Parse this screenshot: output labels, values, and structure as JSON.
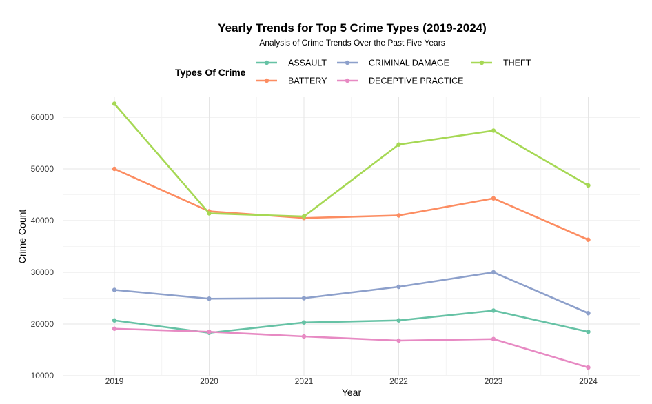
{
  "chart_data": {
    "type": "line",
    "title": "Yearly Trends for Top 5 Crime Types (2019-2024)",
    "subtitle": "Analysis of Crime Trends Over the Past Five Years",
    "xlabel": "Year",
    "ylabel": "Crime Count",
    "x": [
      "2019",
      "2020",
      "2021",
      "2022",
      "2023",
      "2024"
    ],
    "yticks": [
      "10000",
      "20000",
      "30000",
      "40000",
      "50000",
      "60000"
    ],
    "ylim": [
      10000,
      64000
    ],
    "grid": true,
    "legend": {
      "title": "Types Of Crime",
      "position": "top"
    },
    "series": [
      {
        "name": "ASSAULT",
        "color": "#66c2a5",
        "values": [
          20700,
          18300,
          20300,
          20700,
          22600,
          18500
        ]
      },
      {
        "name": "BATTERY",
        "color": "#fc8d62",
        "values": [
          50000,
          41800,
          40500,
          41000,
          44300,
          36300
        ]
      },
      {
        "name": "CRIMINAL DAMAGE",
        "color": "#8da0cb",
        "values": [
          26600,
          24900,
          25000,
          27200,
          30000,
          22100
        ]
      },
      {
        "name": "DECEPTIVE PRACTICE",
        "color": "#e78ac3",
        "values": [
          19100,
          18500,
          17600,
          16800,
          17100,
          11600
        ]
      },
      {
        "name": "THEFT",
        "color": "#a6d854",
        "values": [
          62600,
          41400,
          40800,
          54700,
          57400,
          46800
        ]
      }
    ]
  }
}
